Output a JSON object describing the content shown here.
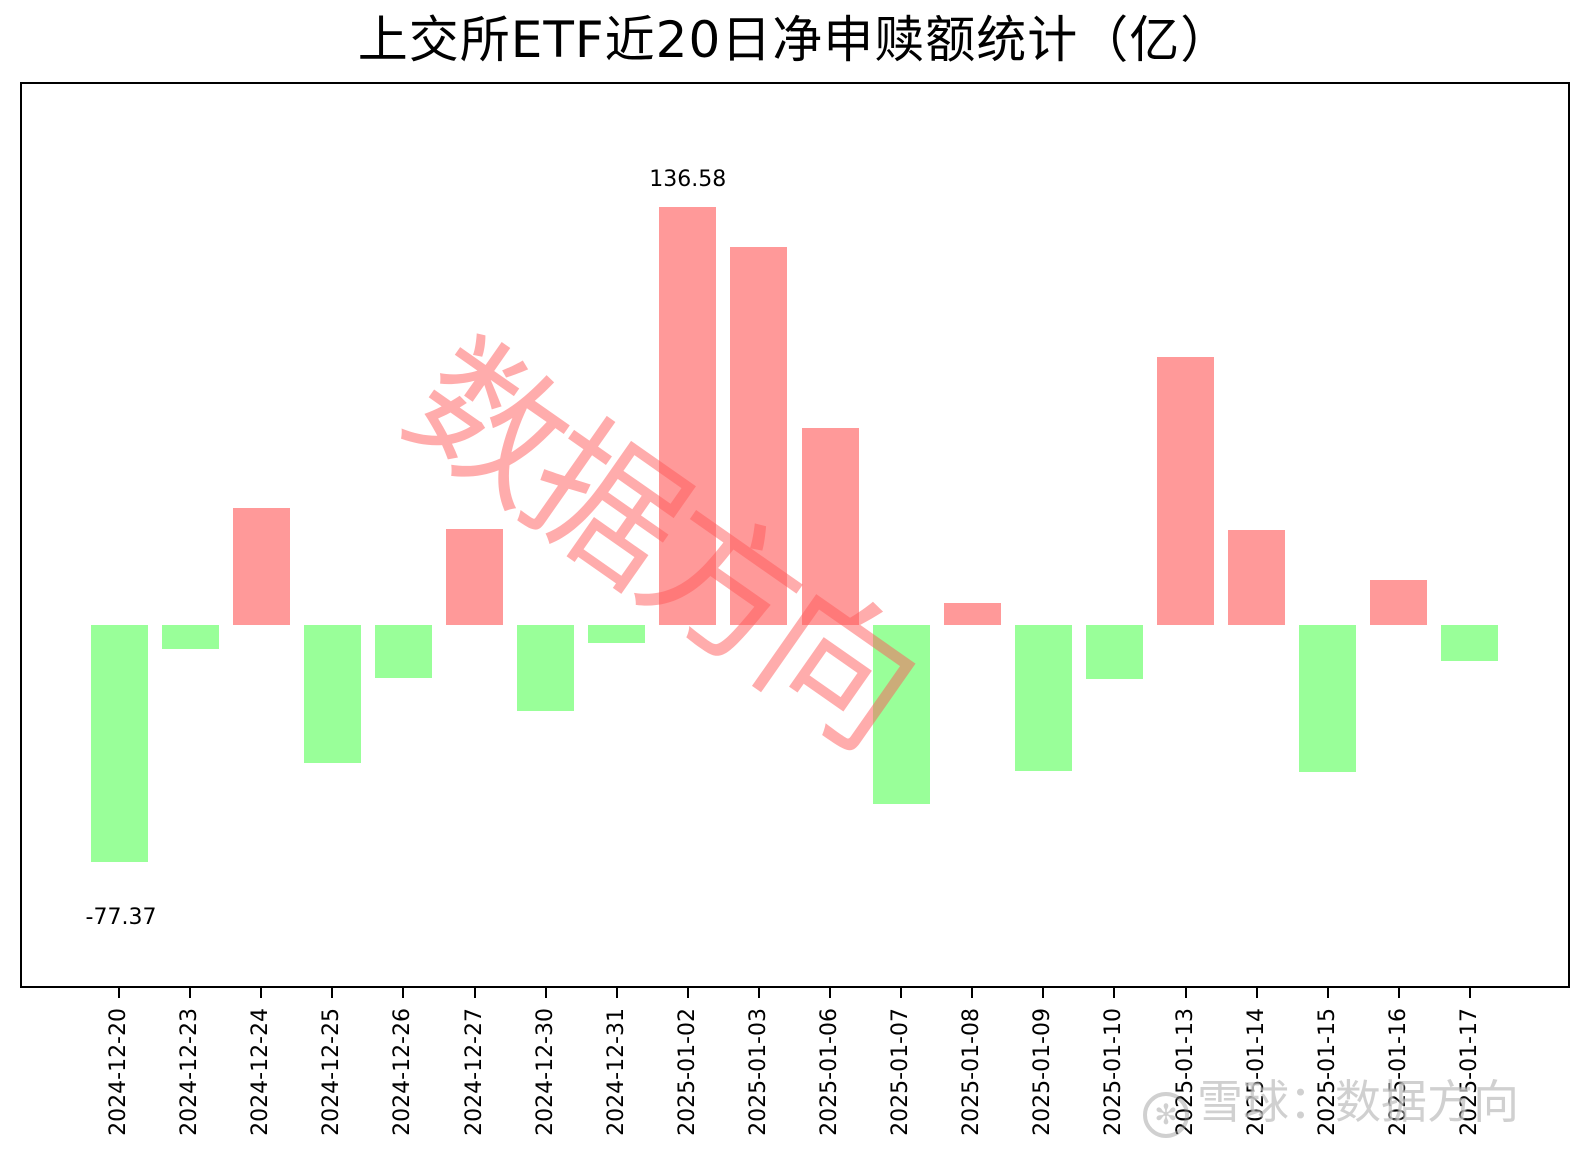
{
  "chart_data": {
    "type": "bar",
    "title": "上交所ETF近20日净申赎额统计（亿）",
    "xlabel": "",
    "ylabel": "",
    "categories": [
      "2024-12-20",
      "2024-12-23",
      "2024-12-24",
      "2024-12-25",
      "2024-12-26",
      "2024-12-27",
      "2024-12-30",
      "2024-12-31",
      "2025-01-02",
      "2025-01-03",
      "2025-01-06",
      "2025-01-07",
      "2025-01-08",
      "2025-01-09",
      "2025-01-10",
      "2025-01-13",
      "2025-01-14",
      "2025-01-15",
      "2025-01-16",
      "2025-01-17"
    ],
    "values": [
      -77.37,
      -7.8,
      38.2,
      -45.1,
      -17.3,
      31.4,
      -28.1,
      -5.9,
      136.58,
      123.5,
      64.3,
      -58.5,
      7.2,
      -47.7,
      -17.6,
      87.5,
      31.0,
      -48.0,
      14.7,
      -11.8
    ],
    "ylim": [
      -118.6,
      177.4
    ],
    "grid": false,
    "yticks_visible": false,
    "positive_color": "#FF9999",
    "negative_color": "#99FF99",
    "annotations": [
      {
        "label": "136.58",
        "category": "2025-01-02",
        "position": "above_max"
      },
      {
        "label": "-77.37",
        "category": "2024-12-20",
        "position": "below_min"
      }
    ],
    "legend": null
  },
  "title": "上交所ETF近20日净申赎额统计（亿）",
  "annotations": {
    "max_label": "136.58",
    "min_label": "-77.37"
  },
  "watermarks": {
    "center_text": "数据方向",
    "corner_logo": "✻",
    "corner_text": "雪球：数据方向"
  }
}
